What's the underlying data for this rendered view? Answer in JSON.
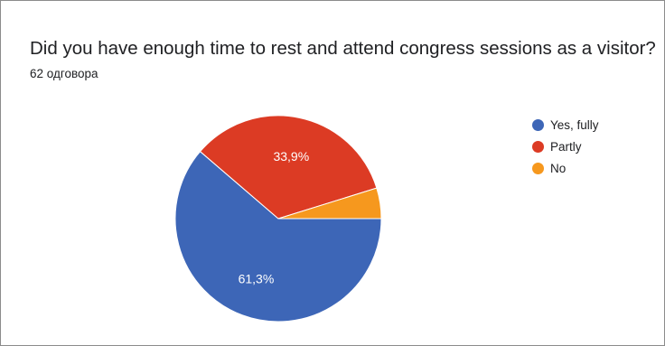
{
  "header": {
    "title": "Did you have enough time to rest and attend congress sessions as a visitor?",
    "response_count": "62 одговора"
  },
  "chart_data": {
    "type": "pie",
    "title": "Did you have enough time to rest and attend congress sessions as a visitor?",
    "categories": [
      "Yes, fully",
      "Partly",
      "No"
    ],
    "values": [
      61.3,
      33.9,
      4.8
    ],
    "labels": [
      "61,3%",
      "33,9%",
      ""
    ],
    "colors": [
      "#3d66b7",
      "#dc3b24",
      "#f6981e"
    ],
    "legend_position": "right"
  }
}
